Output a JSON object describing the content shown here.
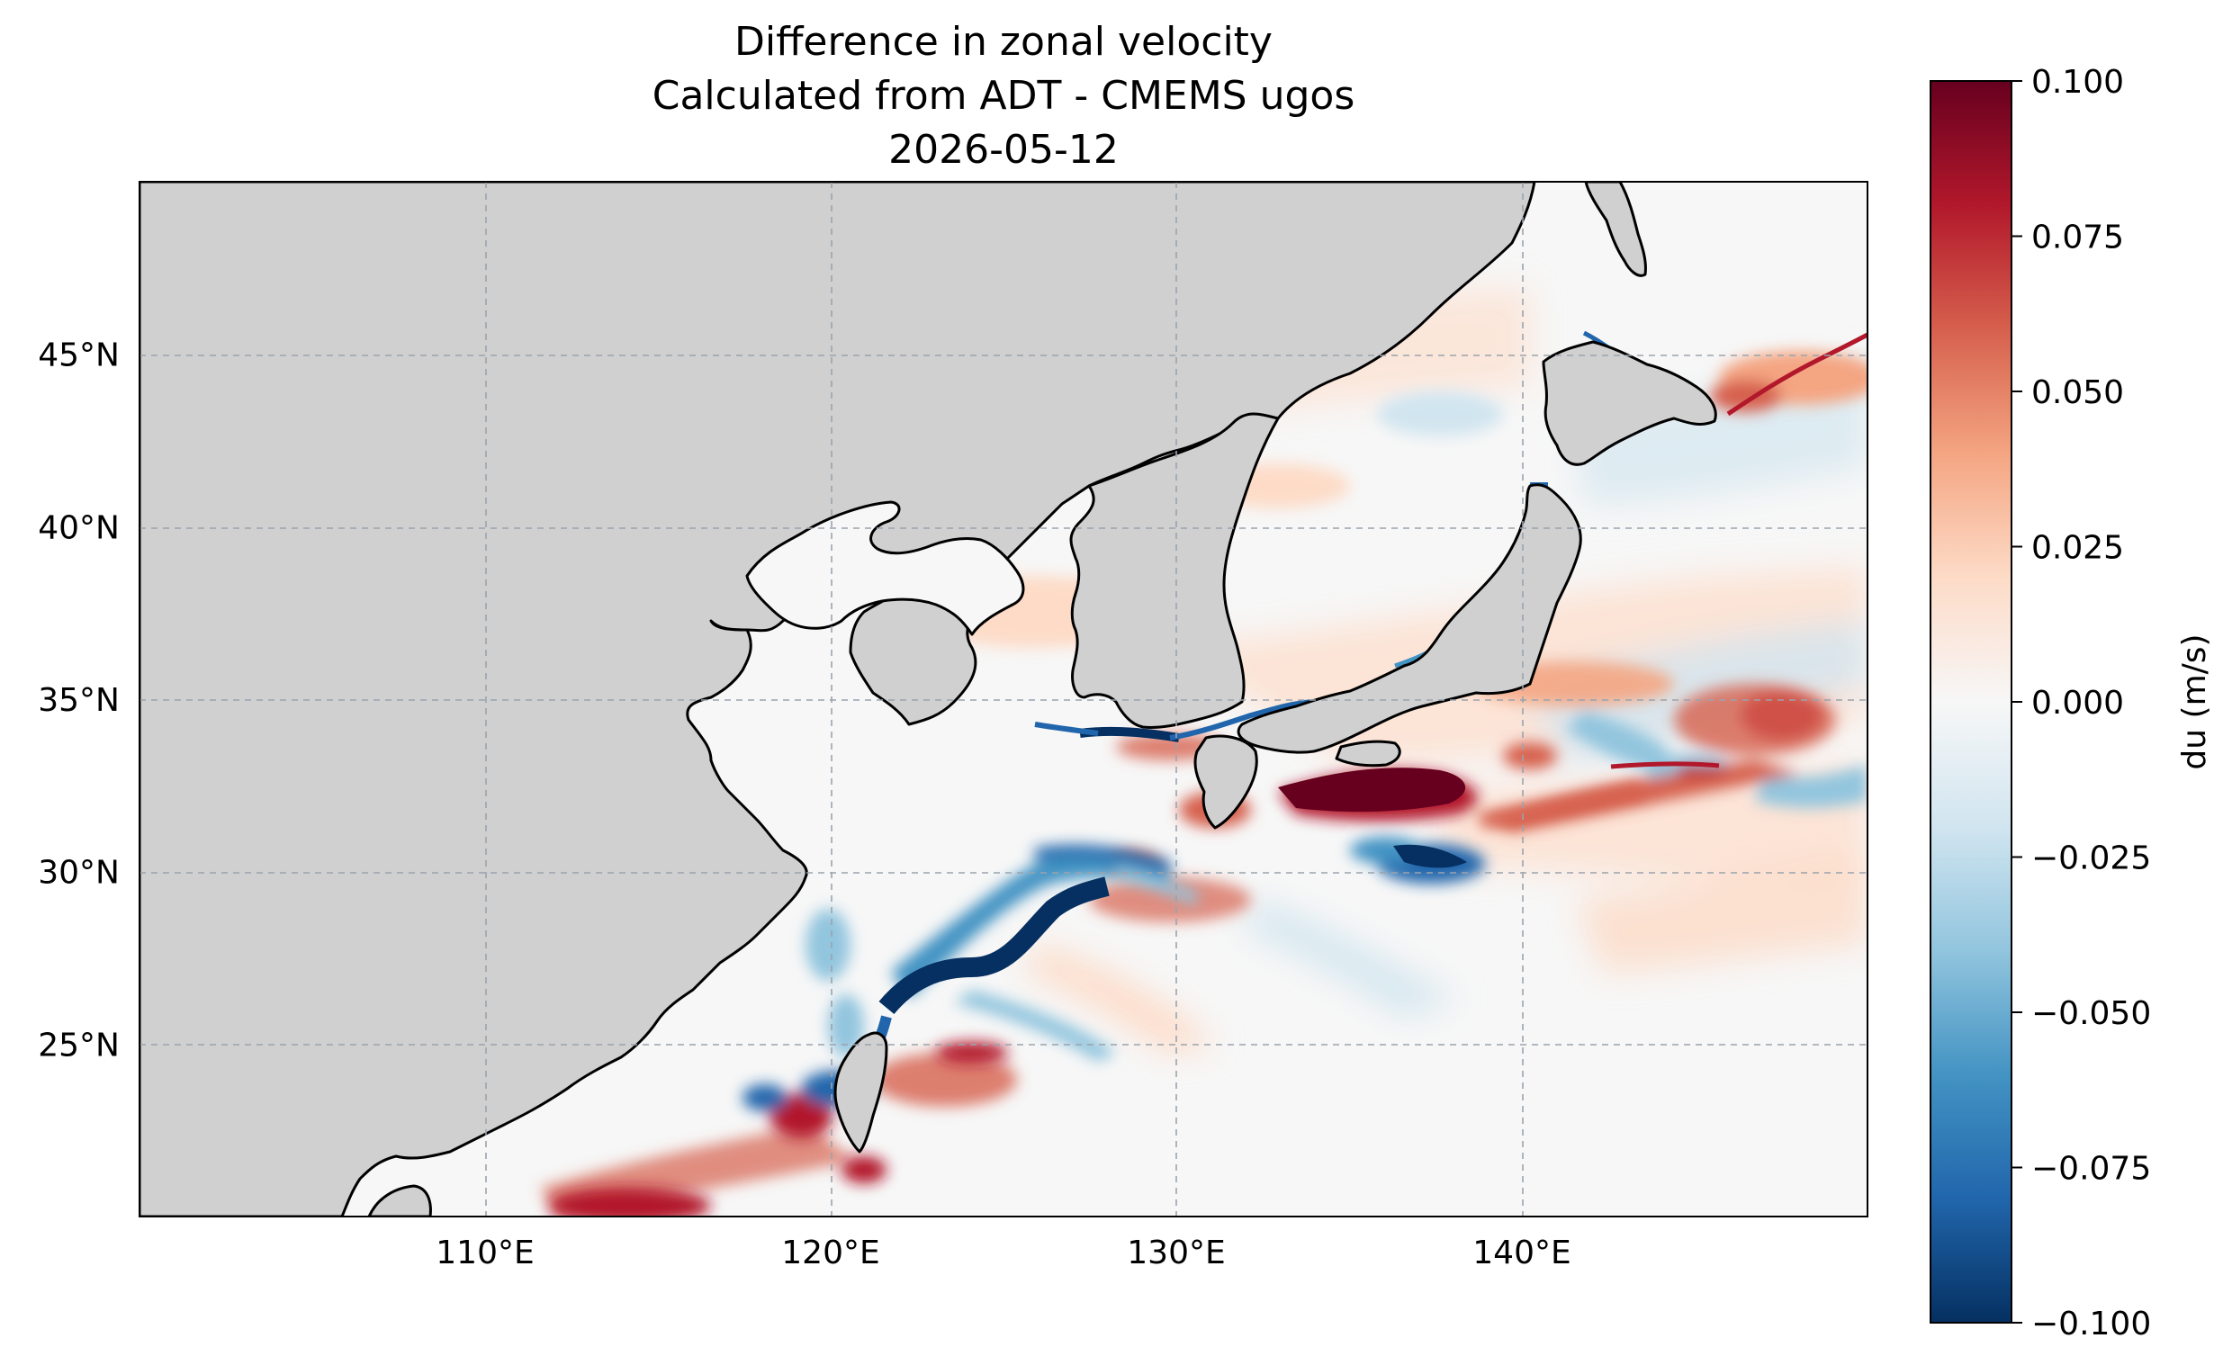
{
  "title": {
    "line1": "Difference in zonal velocity",
    "line2": "Calculated from ADT - CMEMS ugos",
    "line3": "2026-05-12"
  },
  "map": {
    "lon_range": [
      100,
      150
    ],
    "lat_range": [
      20,
      50
    ],
    "x_ticks": [
      {
        "value": 110,
        "label": "110°E"
      },
      {
        "value": 120,
        "label": "120°E"
      },
      {
        "value": 130,
        "label": "130°E"
      },
      {
        "value": 140,
        "label": "140°E"
      }
    ],
    "y_ticks": [
      {
        "value": 25,
        "label": "25°N"
      },
      {
        "value": 30,
        "label": "30°N"
      },
      {
        "value": 35,
        "label": "35°N"
      },
      {
        "value": 40,
        "label": "40°N"
      },
      {
        "value": 45,
        "label": "45°N"
      }
    ],
    "gridlines": true,
    "land_color": "#d0d0d0",
    "coastline_color": "#000000",
    "colormap": "RdBu_r"
  },
  "colorbar": {
    "label": "du (m/s)",
    "vmin": -0.1,
    "vmax": 0.1,
    "ticks": [
      {
        "value": 0.1,
        "label": "0.100"
      },
      {
        "value": 0.075,
        "label": "0.075"
      },
      {
        "value": 0.05,
        "label": "0.050"
      },
      {
        "value": 0.025,
        "label": "0.025"
      },
      {
        "value": 0.0,
        "label": "0.000"
      },
      {
        "value": -0.025,
        "label": "−0.025"
      },
      {
        "value": -0.05,
        "label": "−0.050"
      },
      {
        "value": -0.075,
        "label": "−0.075"
      },
      {
        "value": -0.1,
        "label": "−0.100"
      }
    ]
  },
  "colors": {
    "dark_red": "#67001f",
    "red": "#b2182b",
    "light_red": "#f4a582",
    "white": "#f7f7f7",
    "light_blue": "#92c5de",
    "blue": "#2166ac",
    "dark_blue": "#053061"
  }
}
